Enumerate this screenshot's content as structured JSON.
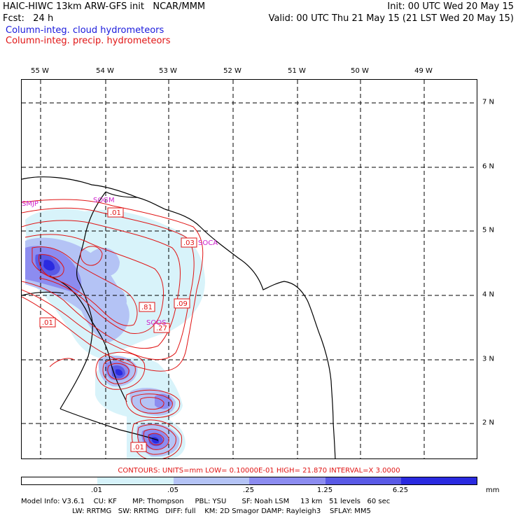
{
  "header": {
    "title_left": "HAIC-HIWC 13km ARW-GFS init   NCAR/MMM",
    "fcst": "Fcst:   24 h",
    "init": "Init: 00 UTC Wed 20 May 15",
    "valid": "Valid: 00 UTC Thu 21 May 15 (21 LST Wed 20 May 15)",
    "field_cloud": "Column-integ. cloud hydrometeors",
    "field_precip": "Column-integ. precip. hydrometeors"
  },
  "colors": {
    "cloud_label": "#1a1adc",
    "precip_label": "#e01414",
    "contour": "#e01414",
    "station": "#cc22cc",
    "shade_1": "#d6f2fa",
    "shade_2": "#b4c3f5",
    "shade_3": "#8c8cf0",
    "shade_4": "#5a5ae6",
    "shade_5": "#2a2ae0"
  },
  "map": {
    "lon_labels": [
      "55 W",
      "54 W",
      "53 W",
      "52 W",
      "51 W",
      "50 W",
      "49 W"
    ],
    "lat_labels": [
      "7 N",
      "6 N",
      "5 N",
      "4 N",
      "3 N",
      "2 N"
    ],
    "stations": [
      "SMJP",
      "SOGM",
      "SOCA",
      "SOOS"
    ],
    "contour_labels": [
      ".01",
      ".03",
      ".09",
      ".81",
      ".27",
      ".01",
      ".01"
    ]
  },
  "contours_info": "CONTOURS:  UNITS=mm   LOW= 0.10000E-01   HIGH=  21.870      INTERVAL=X  3.0000",
  "colorbar": {
    "labels": [
      ".01",
      ".05",
      ".25",
      "1.25",
      "6.25"
    ],
    "unit": "mm",
    "colors": [
      "#ffffff",
      "#d6f2fa",
      "#b4c3f5",
      "#8c8cf0",
      "#5a5ae6",
      "#2a2ae0"
    ]
  },
  "model_info": {
    "line1": "Model Info: V3.6.1    CU: KF       MP: Thompson     PBL: YSU       SF: Noah LSM     13 km   51 levels   60 sec",
    "line2": "                       LW: RRTMG   SW: RRTMG   DIFF: full    KM: 2D Smagor DAMP: Rayleigh3    SFLAY: MM5"
  }
}
